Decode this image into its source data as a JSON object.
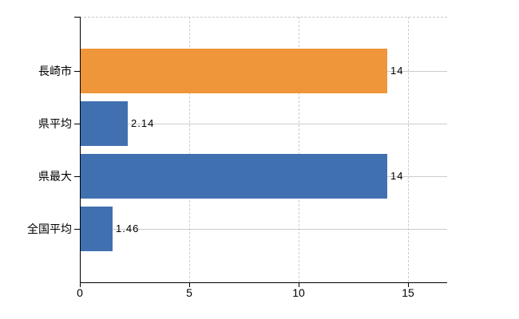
{
  "chart_data": {
    "type": "bar",
    "orientation": "horizontal",
    "categories": [
      "長崎市",
      "県平均",
      "県最大",
      "全国平均"
    ],
    "values": [
      14,
      2.14,
      14,
      1.46
    ],
    "value_labels": [
      "14",
      "2.14",
      "14",
      "1.46"
    ],
    "bar_colors": [
      "#ef953a",
      "#4070b0",
      "#4070b0",
      "#4070b0"
    ],
    "x_ticks": [
      0,
      5,
      10,
      15
    ],
    "x_tick_labels": [
      "0",
      "5",
      "10",
      "15"
    ],
    "xlim": [
      0,
      16.8
    ],
    "legend": "none",
    "grid": {
      "vertical": "dashed",
      "horizontal": "solid"
    }
  },
  "colors": {
    "bar_orange": "#ef953a",
    "bar_blue": "#4070b0",
    "axis": "#000000",
    "gridline_vertical": "#cccccc",
    "gridline_horizontal": "#c9cec7",
    "plot_top_border": "#c9c9d2",
    "background": "#ffffff",
    "label_text": "#000000"
  }
}
